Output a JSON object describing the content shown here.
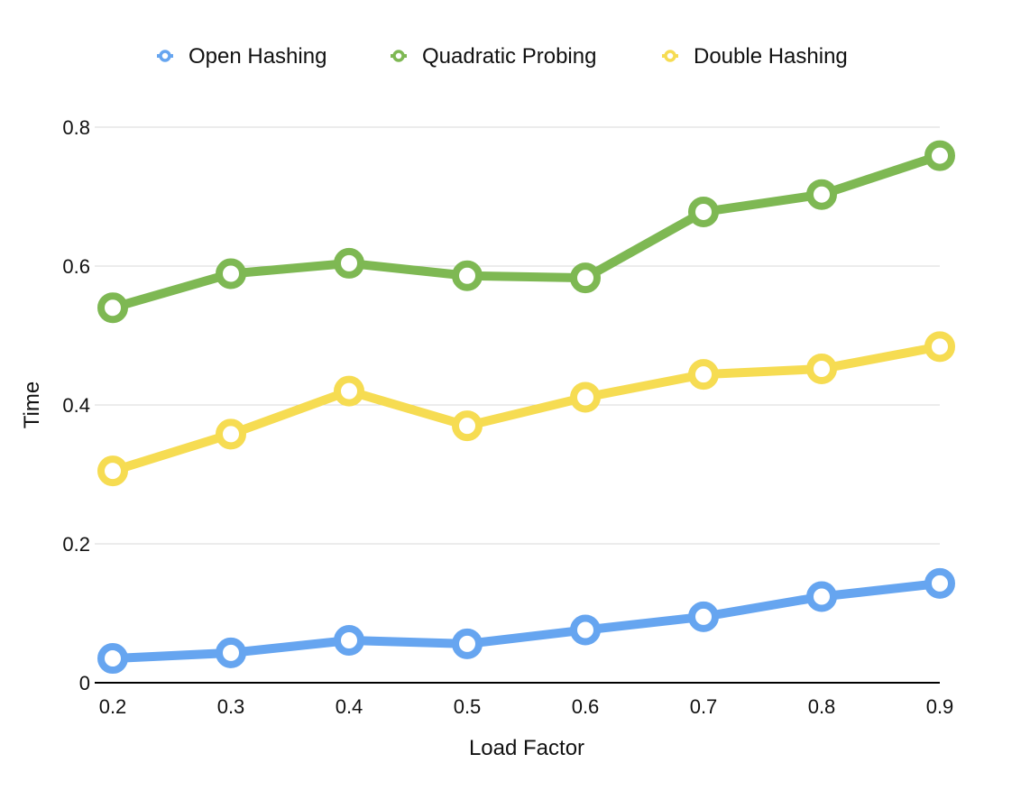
{
  "chart_data": {
    "type": "line",
    "title": "",
    "xlabel": "Load Factor",
    "ylabel": "Time",
    "categories": [
      "0.2",
      "0.3",
      "0.4",
      "0.5",
      "0.6",
      "0.7",
      "0.8",
      "0.9"
    ],
    "yticks": [
      "0",
      "0.2",
      "0.4",
      "0.6",
      "0.8"
    ],
    "ylim": [
      0,
      0.8
    ],
    "grid": true,
    "legend_position": "top",
    "series": [
      {
        "name": "Open Hashing",
        "color": "#66a5f0",
        "values": [
          0.035,
          0.043,
          0.061,
          0.056,
          0.076,
          0.095,
          0.124,
          0.143
        ]
      },
      {
        "name": "Quadratic Probing",
        "color": "#7eb853",
        "values": [
          0.54,
          0.589,
          0.604,
          0.586,
          0.583,
          0.678,
          0.703,
          0.759
        ]
      },
      {
        "name": "Double Hashing",
        "color": "#f6dc52",
        "values": [
          0.305,
          0.358,
          0.42,
          0.37,
          0.411,
          0.444,
          0.452,
          0.484
        ]
      }
    ]
  }
}
